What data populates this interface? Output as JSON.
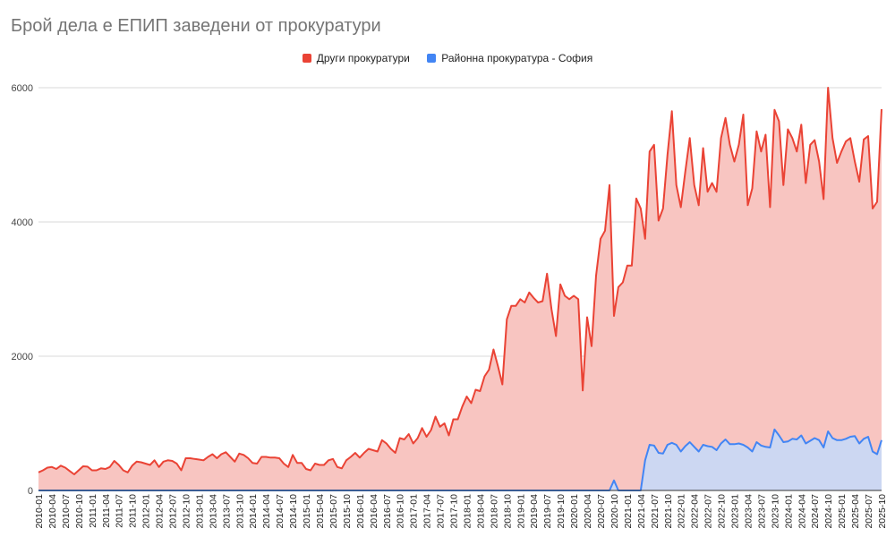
{
  "chart_data": {
    "type": "area",
    "title": "Брой дела е ЕПИП заведени от прокуратури",
    "xlabel": "",
    "ylabel": "",
    "ylim": [
      0,
      6000
    ],
    "yticks": [
      "0",
      "2000",
      "4000",
      "6000"
    ],
    "ytick_values": [
      0,
      2000,
      4000,
      6000
    ],
    "x_start": "2010-01",
    "x_end": "2025-10",
    "xtick_labels": [
      "2010-01",
      "2010-04",
      "2010-07",
      "2010-10",
      "2011-01",
      "2011-04",
      "2011-07",
      "2011-10",
      "2012-01",
      "2012-04",
      "2012-07",
      "2012-10",
      "2013-01",
      "2013-04",
      "2013-07",
      "2013-10",
      "2014-01",
      "2014-04",
      "2014-07",
      "2014-10",
      "2015-01",
      "2015-04",
      "2015-07",
      "2015-10",
      "2016-01",
      "2016-04",
      "2016-07",
      "2016-10",
      "2017-01",
      "2017-04",
      "2017-07",
      "2017-10",
      "2018-01",
      "2018-04",
      "2018-07",
      "2018-10",
      "2019-01",
      "2019-04",
      "2019-07",
      "2019-10",
      "2020-01",
      "2020-04",
      "2020-07",
      "2020-10",
      "2021-01",
      "2021-04",
      "2021-07",
      "2021-10",
      "2022-01",
      "2022-04",
      "2022-07",
      "2022-10",
      "2023-01",
      "2023-04",
      "2023-07",
      "2023-10",
      "2024-01",
      "2024-04",
      "2024-07",
      "2024-10",
      "2025-01",
      "2025-04",
      "2025-07",
      "2025-10"
    ],
    "grid": true,
    "legend_position": "top-center",
    "series": [
      {
        "name": "Други прокуратури",
        "color": "#ea4335",
        "fill": "#f8c5c1",
        "values": [
          270,
          300,
          340,
          350,
          320,
          370,
          340,
          290,
          240,
          300,
          360,
          355,
          300,
          300,
          330,
          320,
          350,
          440,
          380,
          300,
          270,
          370,
          430,
          420,
          400,
          380,
          450,
          350,
          430,
          450,
          440,
          400,
          300,
          480,
          480,
          470,
          460,
          450,
          500,
          540,
          480,
          540,
          570,
          500,
          430,
          550,
          530,
          480,
          410,
          400,
          500,
          500,
          490,
          490,
          480,
          400,
          350,
          530,
          410,
          410,
          320,
          300,
          400,
          380,
          380,
          450,
          470,
          350,
          330,
          450,
          500,
          560,
          490,
          560,
          620,
          600,
          580,
          750,
          700,
          620,
          560,
          780,
          760,
          840,
          700,
          780,
          930,
          800,
          900,
          1100,
          950,
          1000,
          820,
          1060,
          1060,
          1250,
          1400,
          1300,
          1500,
          1480,
          1700,
          1800,
          2100,
          1850,
          1580,
          2550,
          2750,
          2750,
          2850,
          2800,
          2950,
          2870,
          2800,
          2820,
          3230,
          2700,
          2300,
          3070,
          2900,
          2850,
          2900,
          2850,
          1490,
          2580,
          2150,
          3200,
          3750,
          3870,
          4550,
          2600,
          3030,
          3100,
          3350,
          3350,
          4350,
          4200,
          3750,
          5050,
          5150,
          4020,
          4200,
          5000,
          5650,
          4550,
          4220,
          4750,
          5250,
          4550,
          4250,
          5100,
          4450,
          4580,
          4450,
          5250,
          5550,
          5150,
          4900,
          5150,
          5600,
          4250,
          4500,
          5350,
          5050,
          5300,
          4220,
          5670,
          5500,
          4550,
          5380,
          5250,
          5050,
          5450,
          4580,
          5150,
          5220,
          4900,
          4340,
          6000,
          5250,
          4880,
          5050,
          5200,
          5250,
          4900,
          4600,
          5230,
          5280,
          4200,
          4300,
          5680
        ]
      },
      {
        "name": "Районна прокуратура - София",
        "color": "#4285f4",
        "fill": "#c6d8f7",
        "values": [
          0,
          0,
          0,
          0,
          0,
          0,
          0,
          0,
          0,
          0,
          0,
          0,
          0,
          0,
          0,
          0,
          0,
          0,
          0,
          0,
          0,
          0,
          0,
          0,
          0,
          0,
          0,
          0,
          0,
          0,
          0,
          0,
          0,
          0,
          0,
          0,
          0,
          0,
          0,
          0,
          0,
          0,
          0,
          0,
          0,
          0,
          0,
          0,
          0,
          0,
          0,
          0,
          0,
          0,
          0,
          0,
          0,
          0,
          0,
          0,
          0,
          0,
          0,
          0,
          0,
          0,
          0,
          0,
          0,
          0,
          0,
          0,
          0,
          0,
          0,
          0,
          0,
          0,
          0,
          0,
          0,
          0,
          0,
          0,
          0,
          0,
          0,
          0,
          0,
          0,
          0,
          0,
          0,
          0,
          0,
          0,
          0,
          0,
          0,
          0,
          0,
          0,
          0,
          0,
          0,
          0,
          0,
          0,
          0,
          0,
          0,
          0,
          0,
          0,
          0,
          0,
          0,
          0,
          0,
          0,
          0,
          0,
          0,
          0,
          0,
          0,
          0,
          0,
          0,
          150,
          0,
          0,
          0,
          0,
          0,
          0,
          450,
          680,
          670,
          560,
          550,
          680,
          710,
          680,
          580,
          660,
          720,
          650,
          580,
          680,
          660,
          650,
          600,
          700,
          760,
          690,
          690,
          700,
          680,
          640,
          580,
          720,
          670,
          650,
          640,
          910,
          820,
          720,
          730,
          770,
          760,
          820,
          700,
          740,
          780,
          750,
          640,
          880,
          780,
          750,
          750,
          770,
          800,
          810,
          700,
          770,
          800,
          580,
          540,
          750
        ]
      }
    ]
  }
}
